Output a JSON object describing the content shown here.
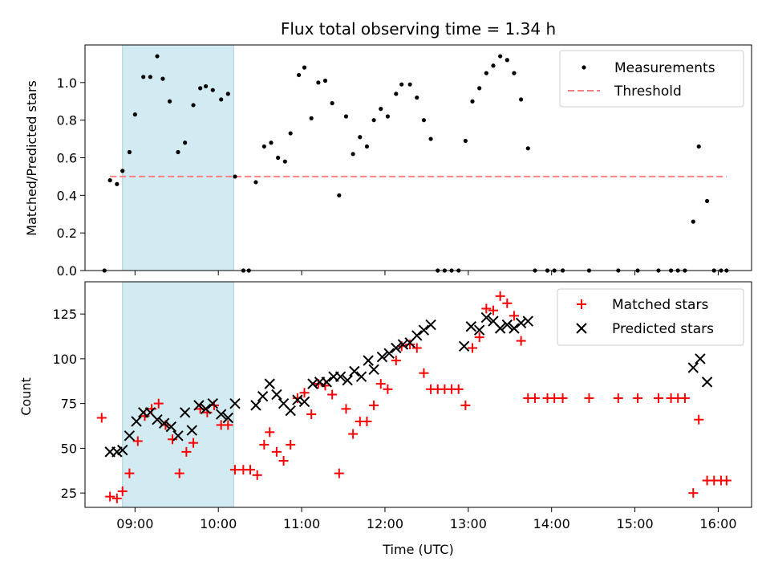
{
  "chart_data": [
    {
      "type": "scatter",
      "title": "Flux total observing time = 1.34 h",
      "xlabel": "",
      "ylabel": "Matched/Predicted stars",
      "xlim": [
        "08:24",
        "16:24"
      ],
      "ylim": [
        0,
        1.2
      ],
      "yticks": [
        "0.0",
        "0.2",
        "0.4",
        "0.6",
        "0.8",
        "1.0"
      ],
      "shaded_interval": [
        "08:51",
        "10:11"
      ],
      "legend_position": "top-right",
      "legend": [
        "Measurements",
        "Threshold"
      ],
      "series": [
        {
          "name": "Measurements",
          "marker": "dot",
          "color": "#000000",
          "points": [
            [
              "08:38",
              0.0
            ],
            [
              "08:42",
              0.48
            ],
            [
              "08:47",
              0.46
            ],
            [
              "08:51",
              0.53
            ],
            [
              "08:56",
              0.63
            ],
            [
              "09:00",
              0.83
            ],
            [
              "09:06",
              1.03
            ],
            [
              "09:11",
              1.03
            ],
            [
              "09:16",
              1.14
            ],
            [
              "09:20",
              1.02
            ],
            [
              "09:25",
              0.9
            ],
            [
              "09:31",
              0.63
            ],
            [
              "09:36",
              0.68
            ],
            [
              "09:42",
              0.88
            ],
            [
              "09:47",
              0.97
            ],
            [
              "09:51",
              0.98
            ],
            [
              "09:56",
              0.96
            ],
            [
              "10:02",
              0.91
            ],
            [
              "10:07",
              0.94
            ],
            [
              "10:12",
              0.5
            ],
            [
              "10:18",
              0.0
            ],
            [
              "10:22",
              0.0
            ],
            [
              "10:27",
              0.47
            ],
            [
              "10:33",
              0.66
            ],
            [
              "10:38",
              0.68
            ],
            [
              "10:43",
              0.6
            ],
            [
              "10:48",
              0.58
            ],
            [
              "10:52",
              0.73
            ],
            [
              "10:58",
              1.04
            ],
            [
              "11:02",
              1.08
            ],
            [
              "11:07",
              0.81
            ],
            [
              "11:12",
              1.0
            ],
            [
              "11:17",
              1.01
            ],
            [
              "11:22",
              0.89
            ],
            [
              "11:27",
              0.4
            ],
            [
              "11:32",
              0.82
            ],
            [
              "11:37",
              0.62
            ],
            [
              "11:42",
              0.71
            ],
            [
              "11:47",
              0.66
            ],
            [
              "11:52",
              0.8
            ],
            [
              "11:57",
              0.86
            ],
            [
              "12:02",
              0.82
            ],
            [
              "12:08",
              0.94
            ],
            [
              "12:12",
              0.99
            ],
            [
              "12:18",
              0.99
            ],
            [
              "12:23",
              0.92
            ],
            [
              "12:28",
              0.8
            ],
            [
              "12:33",
              0.7
            ],
            [
              "12:38",
              0.0
            ],
            [
              "12:43",
              0.0
            ],
            [
              "12:48",
              0.0
            ],
            [
              "12:53",
              0.0
            ],
            [
              "12:58",
              0.69
            ],
            [
              "13:03",
              0.9
            ],
            [
              "13:08",
              0.97
            ],
            [
              "13:13",
              1.05
            ],
            [
              "13:18",
              1.09
            ],
            [
              "13:23",
              1.14
            ],
            [
              "13:28",
              1.12
            ],
            [
              "13:33",
              1.05
            ],
            [
              "13:38",
              0.91
            ],
            [
              "13:43",
              0.65
            ],
            [
              "13:48",
              0.0
            ],
            [
              "13:57",
              0.0
            ],
            [
              "14:02",
              0.0
            ],
            [
              "14:08",
              0.0
            ],
            [
              "14:27",
              0.0
            ],
            [
              "14:48",
              0.0
            ],
            [
              "15:02",
              0.0
            ],
            [
              "15:17",
              0.0
            ],
            [
              "15:26",
              0.0
            ],
            [
              "15:31",
              0.0
            ],
            [
              "15:36",
              0.0
            ],
            [
              "15:42",
              0.26
            ],
            [
              "15:46",
              0.66
            ],
            [
              "15:52",
              0.37
            ],
            [
              "15:57",
              0.0
            ],
            [
              "16:02",
              0.0
            ],
            [
              "16:06",
              0.0
            ]
          ]
        },
        {
          "name": "Threshold",
          "style": "dashed",
          "color": "#ff8080",
          "points": [
            [
              "08:42",
              0.5
            ],
            [
              "16:06",
              0.5
            ]
          ]
        }
      ]
    },
    {
      "type": "scatter",
      "title": "",
      "xlabel": "Time (UTC)",
      "ylabel": "Count",
      "xlim": [
        "08:24",
        "16:24"
      ],
      "ylim": [
        17,
        143
      ],
      "xticks": [
        "09:00",
        "10:00",
        "11:00",
        "12:00",
        "13:00",
        "14:00",
        "15:00",
        "16:00"
      ],
      "yticks": [
        "25",
        "50",
        "75",
        "100",
        "125"
      ],
      "shaded_interval": [
        "08:51",
        "10:11"
      ],
      "legend_position": "top-right",
      "legend": [
        "Matched stars",
        "Predicted stars"
      ],
      "series": [
        {
          "name": "Matched stars",
          "marker": "plus",
          "color": "#ff0000",
          "points": [
            [
              "08:36",
              67
            ],
            [
              "08:42",
              23
            ],
            [
              "08:47",
              22
            ],
            [
              "08:51",
              26
            ],
            [
              "08:56",
              36
            ],
            [
              "09:02",
              54
            ],
            [
              "09:07",
              68
            ],
            [
              "09:12",
              72
            ],
            [
              "09:17",
              75
            ],
            [
              "09:22",
              63
            ],
            [
              "09:27",
              55
            ],
            [
              "09:32",
              36
            ],
            [
              "09:37",
              48
            ],
            [
              "09:42",
              53
            ],
            [
              "09:47",
              72
            ],
            [
              "09:52",
              70
            ],
            [
              "09:57",
              74
            ],
            [
              "10:02",
              63
            ],
            [
              "10:07",
              63
            ],
            [
              "10:12",
              38
            ],
            [
              "10:18",
              38
            ],
            [
              "10:23",
              38
            ],
            [
              "10:28",
              35
            ],
            [
              "10:33",
              52
            ],
            [
              "10:37",
              59
            ],
            [
              "10:42",
              48
            ],
            [
              "10:47",
              43
            ],
            [
              "10:52",
              52
            ],
            [
              "10:57",
              78
            ],
            [
              "11:02",
              81
            ],
            [
              "11:07",
              69
            ],
            [
              "11:12",
              86
            ],
            [
              "11:17",
              85
            ],
            [
              "11:22",
              80
            ],
            [
              "11:27",
              36
            ],
            [
              "11:32",
              72
            ],
            [
              "11:37",
              58
            ],
            [
              "11:42",
              65
            ],
            [
              "11:47",
              65
            ],
            [
              "11:52",
              74
            ],
            [
              "11:57",
              86
            ],
            [
              "12:02",
              83
            ],
            [
              "12:08",
              99
            ],
            [
              "12:12",
              107
            ],
            [
              "12:18",
              108
            ],
            [
              "12:23",
              106
            ],
            [
              "12:28",
              92
            ],
            [
              "12:33",
              83
            ],
            [
              "12:38",
              83
            ],
            [
              "12:43",
              83
            ],
            [
              "12:48",
              83
            ],
            [
              "12:53",
              83
            ],
            [
              "12:58",
              74
            ],
            [
              "13:03",
              106
            ],
            [
              "13:08",
              112
            ],
            [
              "13:13",
              128
            ],
            [
              "13:18",
              127
            ],
            [
              "13:23",
              135
            ],
            [
              "13:28",
              131
            ],
            [
              "13:33",
              124
            ],
            [
              "13:38",
              110
            ],
            [
              "13:43",
              78
            ],
            [
              "13:48",
              78
            ],
            [
              "13:57",
              78
            ],
            [
              "14:02",
              78
            ],
            [
              "14:08",
              78
            ],
            [
              "14:27",
              78
            ],
            [
              "14:48",
              78
            ],
            [
              "15:02",
              78
            ],
            [
              "15:17",
              78
            ],
            [
              "15:26",
              78
            ],
            [
              "15:31",
              78
            ],
            [
              "15:36",
              78
            ],
            [
              "15:42",
              25
            ],
            [
              "15:46",
              66
            ],
            [
              "15:52",
              32
            ],
            [
              "15:57",
              32
            ],
            [
              "16:02",
              32
            ],
            [
              "16:06",
              32
            ]
          ]
        },
        {
          "name": "Predicted stars",
          "marker": "x",
          "color": "#000000",
          "points": [
            [
              "08:42",
              48
            ],
            [
              "08:47",
              48
            ],
            [
              "08:51",
              49
            ],
            [
              "08:56",
              57
            ],
            [
              "09:01",
              65
            ],
            [
              "09:06",
              70
            ],
            [
              "09:11",
              70
            ],
            [
              "09:16",
              66
            ],
            [
              "09:21",
              64
            ],
            [
              "09:26",
              62
            ],
            [
              "09:31",
              57
            ],
            [
              "09:36",
              70
            ],
            [
              "09:41",
              60
            ],
            [
              "09:46",
              74
            ],
            [
              "09:51",
              72
            ],
            [
              "09:56",
              75
            ],
            [
              "10:02",
              69
            ],
            [
              "10:07",
              67
            ],
            [
              "10:12",
              75
            ],
            [
              "10:27",
              74
            ],
            [
              "10:32",
              79
            ],
            [
              "10:37",
              86
            ],
            [
              "10:42",
              80
            ],
            [
              "10:47",
              75
            ],
            [
              "10:52",
              71
            ],
            [
              "10:57",
              77
            ],
            [
              "11:02",
              76
            ],
            [
              "11:08",
              86
            ],
            [
              "11:13",
              87
            ],
            [
              "11:18",
              87
            ],
            [
              "11:23",
              90
            ],
            [
              "11:28",
              90
            ],
            [
              "11:33",
              88
            ],
            [
              "11:38",
              93
            ],
            [
              "11:43",
              90
            ],
            [
              "11:48",
              99
            ],
            [
              "11:52",
              94
            ],
            [
              "11:58",
              101
            ],
            [
              "12:03",
              103
            ],
            [
              "12:08",
              106
            ],
            [
              "12:13",
              108
            ],
            [
              "12:18",
              109
            ],
            [
              "12:23",
              113
            ],
            [
              "12:28",
              116
            ],
            [
              "12:33",
              119
            ],
            [
              "12:57",
              107
            ],
            [
              "13:02",
              118
            ],
            [
              "13:08",
              116
            ],
            [
              "13:13",
              123
            ],
            [
              "13:18",
              121
            ],
            [
              "13:23",
              117
            ],
            [
              "13:28",
              119
            ],
            [
              "13:33",
              117
            ],
            [
              "13:38",
              120
            ],
            [
              "13:43",
              121
            ],
            [
              "15:42",
              95
            ],
            [
              "15:47",
              100
            ],
            [
              "15:52",
              87
            ]
          ]
        }
      ]
    }
  ]
}
